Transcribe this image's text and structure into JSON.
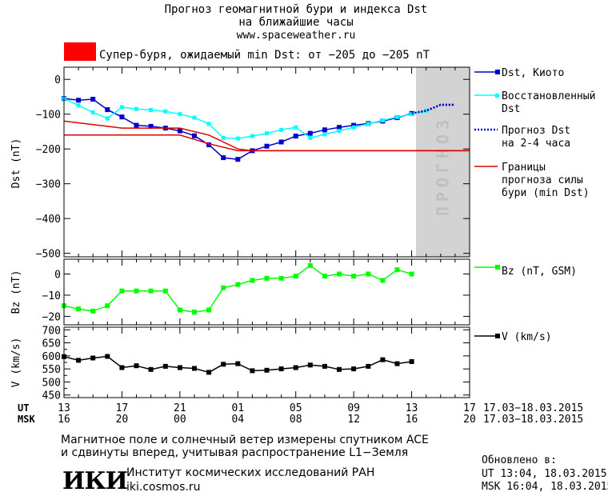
{
  "header": {
    "title_line1": "Прогноз геомагнитной бури и индекса Dst",
    "title_line2": "на ближайшие часы",
    "url": "www.spaceweather.ru",
    "storm_text": "Супер-буря, ожидаемый min Dst: от −205 до −205 nT",
    "storm_color": "#ff0000"
  },
  "colors": {
    "dst_kyoto": "#0000cc",
    "dst_restored": "#00ffff",
    "dst_forecast": "#0000cc",
    "bound": "#dd0000",
    "bz": "#00ff00",
    "v": "#000000",
    "forecast_band": "#d3d3d3",
    "forecast_text": "#bfbfbf"
  },
  "chart_data": [
    {
      "type": "line",
      "ylabel": "Dst (nT)",
      "ylim": [
        -510,
        35
      ],
      "yticks": [
        0,
        -100,
        -200,
        -300,
        -400,
        -500
      ],
      "xlim": [
        0,
        28
      ],
      "forecast_band": [
        24.3,
        28
      ],
      "forecast_label": "ПРОГНОЗ",
      "series": [
        {
          "name": "Dst, Киото",
          "key": "kyoto",
          "x": [
            0,
            1,
            2,
            3,
            4,
            5,
            6,
            7,
            8,
            9,
            10,
            11,
            12,
            13,
            14,
            15,
            16,
            17,
            18,
            19,
            20,
            21,
            22,
            23,
            24
          ],
          "y": [
            -55,
            -60,
            -57,
            -87,
            -108,
            -132,
            -135,
            -140,
            -148,
            -162,
            -188,
            -225,
            -230,
            -205,
            -192,
            -180,
            -163,
            -155,
            -145,
            -138,
            -132,
            -127,
            -120,
            -110,
            -98
          ]
        },
        {
          "name": "Dst, Киото",
          "key": "kyoto_forecast",
          "x": [
            24,
            25,
            26,
            27
          ],
          "y": [
            -98,
            -90,
            -73,
            -73
          ]
        },
        {
          "name": "Восстановленный Dst",
          "key": "restored",
          "x": [
            0,
            1,
            2,
            3,
            4,
            5,
            6,
            7,
            8,
            9,
            10,
            11,
            12,
            13,
            14,
            15,
            16,
            17,
            18,
            19,
            20,
            21,
            22,
            23,
            24,
            25
          ],
          "y": [
            -55,
            -75,
            -95,
            -112,
            -80,
            -85,
            -88,
            -92,
            -100,
            -110,
            -128,
            -168,
            -170,
            -163,
            -155,
            -145,
            -138,
            -168,
            -158,
            -148,
            -138,
            -128,
            -118,
            -108,
            -100,
            -90
          ]
        },
        {
          "name": "Прогноз Dst на 2-4 часа",
          "key": "forecast",
          "x": [
            24,
            25,
            26,
            27
          ],
          "y": [
            -98,
            -90,
            -73,
            -73
          ]
        },
        {
          "name": "Границы прогноза силы бури (min Dst)",
          "key": "bound_upper",
          "x": [
            0,
            4,
            8,
            10,
            12,
            13,
            28
          ],
          "y": [
            -120,
            -140,
            -140,
            -160,
            -200,
            -205,
            -205
          ]
        },
        {
          "name": "Границы прогноза силы бури (min Dst)",
          "key": "bound_lower",
          "x": [
            0,
            7,
            8,
            10,
            12,
            13,
            28
          ],
          "y": [
            -160,
            -160,
            -160,
            -185,
            -205,
            -205,
            -205
          ]
        }
      ]
    },
    {
      "type": "line",
      "ylabel": "Bz (nT)",
      "ylim": [
        -24,
        7
      ],
      "yticks": [
        0,
        -10,
        -20
      ],
      "xlim": [
        0,
        28
      ],
      "series": [
        {
          "name": "Bz (nT, GSM)",
          "key": "bz",
          "x": [
            0,
            1,
            2,
            3,
            4,
            5,
            6,
            7,
            8,
            9,
            10,
            11,
            12,
            13,
            14,
            15,
            16,
            17,
            18,
            19,
            20,
            21,
            22,
            23,
            24,
            25
          ],
          "y": [
            -15,
            -16.5,
            -17.5,
            -15,
            -8,
            -8,
            -8,
            -8,
            -17,
            -18,
            -17,
            -6.5,
            -5,
            -3,
            -2,
            -2,
            -1,
            4,
            -1,
            0,
            -1,
            0,
            -3,
            2,
            0,
            null
          ]
        }
      ]
    },
    {
      "type": "line",
      "ylabel": "V (km/s)",
      "ylim": [
        440,
        710
      ],
      "yticks": [
        700,
        650,
        600,
        550,
        500,
        450
      ],
      "xlim": [
        0,
        28
      ],
      "series": [
        {
          "name": "V (km/s)",
          "key": "v",
          "x": [
            0,
            1,
            2,
            3,
            4,
            5,
            6,
            7,
            8,
            9,
            10,
            11,
            12,
            13,
            14,
            15,
            16,
            17,
            18,
            19,
            20,
            21,
            22,
            23,
            24,
            25
          ],
          "y": [
            597,
            583,
            592,
            598,
            555,
            562,
            548,
            560,
            555,
            552,
            537,
            568,
            570,
            543,
            545,
            550,
            555,
            565,
            560,
            548,
            550,
            560,
            585,
            570,
            578,
            null
          ]
        }
      ]
    }
  ],
  "axis_x": {
    "ut_label": "UT",
    "msk_label": "MSK",
    "ut_ticks": [
      "13",
      "17",
      "21",
      "01",
      "05",
      "09",
      "13",
      "17"
    ],
    "msk_ticks": [
      "16",
      "20",
      "00",
      "04",
      "08",
      "12",
      "16",
      "20"
    ],
    "ut_range": "17.03−18.03.2015",
    "msk_range": "17.03−18.03.2015"
  },
  "legend": {
    "kyoto": "Dst, Киото",
    "restored_1": "Восстановленный",
    "restored_2": "Dst",
    "forecast_1": "Прогноз Dst",
    "forecast_2": "на 2-4 часа",
    "bounds_1": "Границы",
    "bounds_2": "прогноза силы",
    "bounds_3": "бури (min Dst)",
    "bz": "Bz (nT, GSM)",
    "v": "V (km/s)"
  },
  "footer": {
    "note_line1": "Магнитное поле и солнечный ветер измерены спутником ACE",
    "note_line2": "и сдвинуты вперед, учитывая распространение L1−Земля",
    "logo_text": "ИКИ",
    "institute": "Институт космических исследований РАН",
    "institute_url": "iki.cosmos.ru",
    "updated_label": "Обновлено в:",
    "updated_ut": "UT  13:04, 18.03.2015",
    "updated_msk": "MSK 16:04, 18.03.2015"
  }
}
